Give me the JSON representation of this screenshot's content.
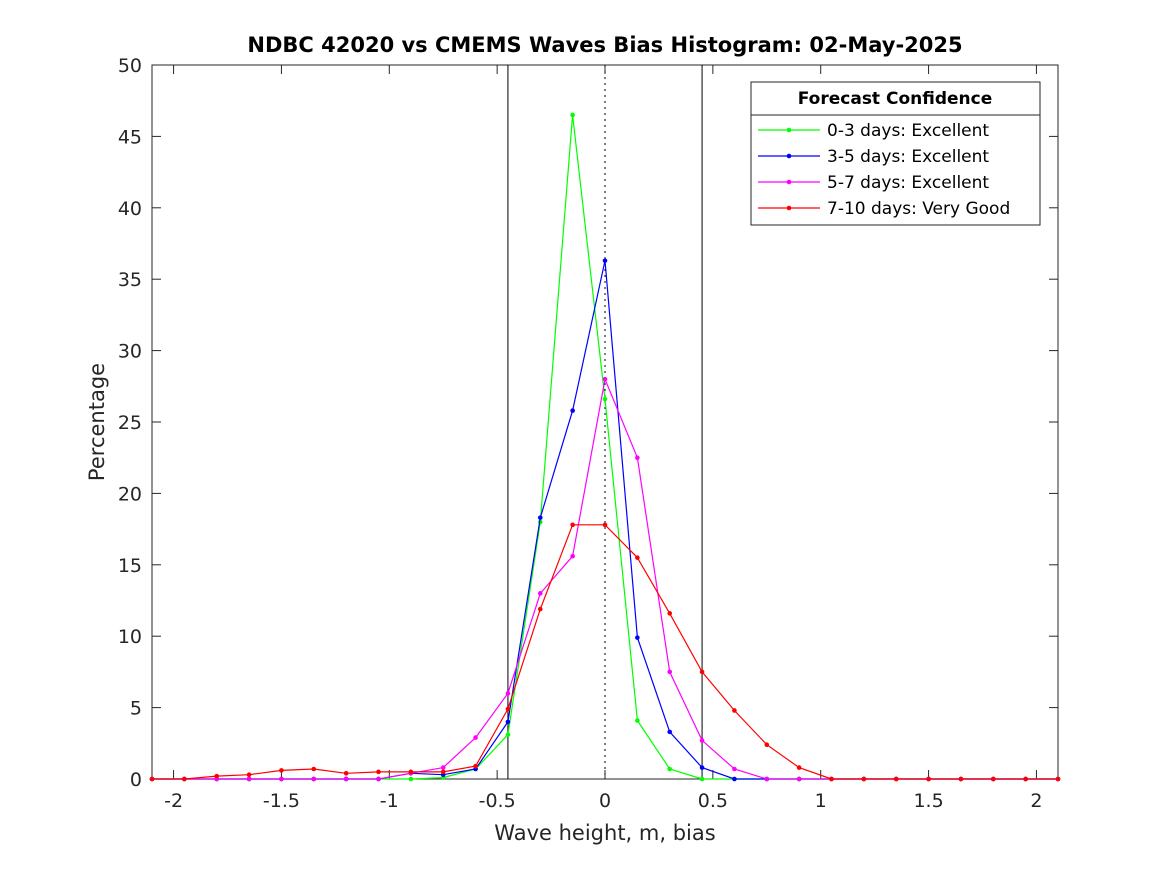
{
  "chart_data": {
    "type": "line",
    "title": "NDBC 42020 vs CMEMS Waves Bias Histogram: 02-May-2025",
    "xlabel": "Wave height, m, bias",
    "ylabel": "Percentage",
    "xlim": [
      -2.1,
      2.1
    ],
    "ylim": [
      0,
      50
    ],
    "xticks": [
      -2,
      -1.5,
      -1,
      -0.5,
      0,
      0.5,
      1,
      1.5,
      2
    ],
    "xtick_labels": [
      "-2",
      "-1.5",
      "-1",
      "-0.5",
      "0",
      "0.5",
      "1",
      "1.5",
      "2"
    ],
    "yticks": [
      0,
      5,
      10,
      15,
      20,
      25,
      30,
      35,
      40,
      45,
      50
    ],
    "ytick_labels": [
      "0",
      "5",
      "10",
      "15",
      "20",
      "25",
      "30",
      "35",
      "40",
      "45",
      "50"
    ],
    "grid": false,
    "vertical_lines": [
      {
        "x": -0.45,
        "style": "solid"
      },
      {
        "x": 0,
        "style": "dotted"
      },
      {
        "x": 0.45,
        "style": "solid"
      }
    ],
    "legend": {
      "title": "Forecast Confidence",
      "placement": "top-right"
    },
    "x": [
      -2.1,
      -1.95,
      -1.8,
      -1.65,
      -1.5,
      -1.35,
      -1.2,
      -1.05,
      -0.9,
      -0.75,
      -0.6,
      -0.45,
      -0.3,
      -0.15,
      0,
      0.15,
      0.3,
      0.45,
      0.6,
      0.75,
      0.9,
      1.05,
      1.2,
      1.35,
      1.5,
      1.65,
      1.8,
      1.95,
      2.1
    ],
    "series": [
      {
        "name": "0-3 days: Excellent",
        "color": "#00ff00",
        "values": [
          0,
          0,
          0,
          0,
          0,
          0,
          0,
          0,
          0,
          0.1,
          0.7,
          3.1,
          18.0,
          46.5,
          26.6,
          4.1,
          0.7,
          0,
          0,
          0,
          0,
          0,
          0,
          0,
          0,
          0,
          0,
          0,
          0
        ]
      },
      {
        "name": "3-5 days: Excellent",
        "color": "#0000ff",
        "values": [
          0,
          0,
          0,
          0,
          0,
          0,
          0,
          0,
          0.4,
          0.3,
          0.7,
          4.0,
          18.3,
          25.8,
          36.3,
          9.9,
          3.3,
          0.8,
          0,
          0,
          0,
          0,
          0,
          0,
          0,
          0,
          0,
          0,
          0
        ]
      },
      {
        "name": "5-7 days: Excellent",
        "color": "#ff00ff",
        "values": [
          0,
          0,
          0,
          0,
          0,
          0,
          0,
          0,
          0.4,
          0.8,
          2.9,
          6.0,
          13.0,
          15.6,
          28.0,
          22.5,
          7.5,
          2.7,
          0.7,
          0,
          0,
          0,
          0,
          0,
          0,
          0,
          0,
          0,
          0
        ]
      },
      {
        "name": "7-10 days: Very Good",
        "color": "#ff0000",
        "values": [
          0,
          0,
          0.2,
          0.3,
          0.6,
          0.7,
          0.4,
          0.5,
          0.5,
          0.5,
          0.9,
          4.9,
          11.9,
          17.8,
          17.8,
          15.5,
          11.6,
          7.5,
          4.8,
          2.4,
          0.8,
          0,
          0,
          0,
          0,
          0,
          0,
          0,
          0
        ]
      }
    ]
  }
}
